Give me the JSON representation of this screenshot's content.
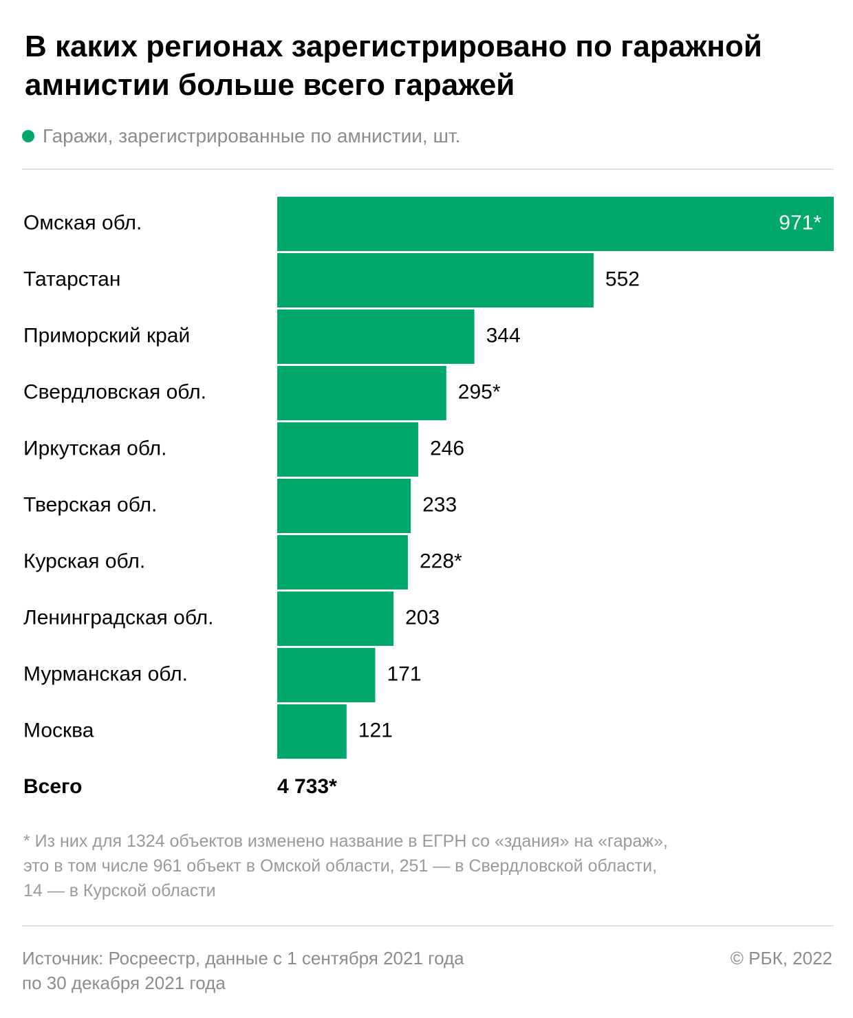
{
  "title": "В каких регионах зарегистрировано по гаражной амнистии больше всего гаражей",
  "legend": {
    "label": "Гаражи, зарегистрированные по амнистии, шт.",
    "color": "#00a86b"
  },
  "colors": {
    "bar": "#00a86b",
    "value_inside": "#ffffff",
    "value_outside": "#000000",
    "rule": "#e3e3e3",
    "muted_text": "#8c8c8c"
  },
  "chart_data": {
    "type": "bar",
    "orientation": "horizontal",
    "categories": [
      "Омская обл.",
      "Татарстан",
      "Приморский край",
      "Свердловская обл.",
      "Иркутская обл.",
      "Тверская обл.",
      "Курская обл.",
      "Ленинградская обл.",
      "Мурманская обл.",
      "Москва"
    ],
    "series": [
      {
        "name": "Гаражи, зарегистрированные по амнистии, шт.",
        "values": [
          971,
          552,
          344,
          295,
          246,
          233,
          228,
          203,
          171,
          121
        ]
      }
    ],
    "value_labels": [
      "971*",
      "552",
      "344",
      "295*",
      "246",
      "233",
      "228*",
      "203",
      "171",
      "121"
    ],
    "xlim": [
      0,
      971
    ],
    "grid": false,
    "total": {
      "label": "Всего",
      "value": "4 733*"
    }
  },
  "footnote": [
    "* Из них для 1324 объектов изменено название в ЕГРН со «здания» на «гараж»,",
    "это в том числе 961 объект в Омской области, 251 — в Свердловской области,",
    "14 — в Курской области"
  ],
  "source": [
    "Источник: Росреестр, данные с 1 сентября 2021 года",
    "по 30 декабря 2021 года"
  ],
  "copyright": "© РБК, 2022"
}
